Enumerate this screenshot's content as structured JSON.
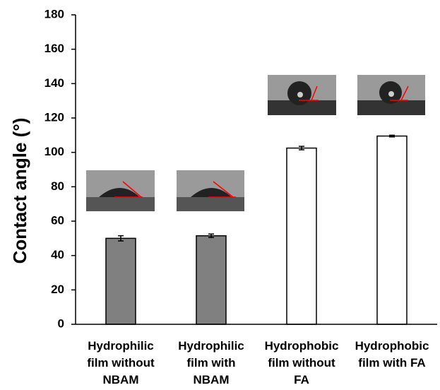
{
  "chart_data": {
    "type": "bar",
    "y_label": "Contact angle (°)",
    "categories": [
      "Hydrophilic film without NBAM",
      "Hydrophilic film with NBAM",
      "Hydrophobic film without FA",
      "Hydrophobic film with FA"
    ],
    "values": [
      50,
      51.5,
      102.5,
      109.5
    ],
    "errors": [
      1.5,
      1,
      1,
      0.5
    ],
    "colors": [
      "#808080",
      "#808080",
      "#ffffff",
      "#ffffff"
    ],
    "ylim": [
      0,
      180
    ],
    "yticks": [
      0,
      20,
      40,
      60,
      80,
      100,
      120,
      140,
      160,
      180
    ],
    "grid": false
  }
}
